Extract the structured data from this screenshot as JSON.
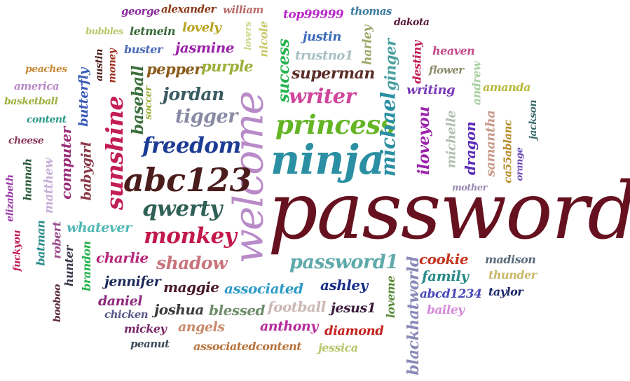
{
  "title": "Common password word cloud",
  "words": [
    {
      "text": "password",
      "color": "#66111f"
    },
    {
      "text": "welcome",
      "color": "#b98ac8"
    },
    {
      "text": "ninja",
      "color": "#2a8fa3"
    },
    {
      "text": "abc123",
      "color": "#4b1c1c"
    },
    {
      "text": "princess",
      "color": "#64b424"
    },
    {
      "text": "sunshine",
      "color": "#c21d55"
    },
    {
      "text": "freedom",
      "color": "#1c3b94"
    },
    {
      "text": "qwerty",
      "color": "#2f5f55"
    },
    {
      "text": "monkey",
      "color": "#c2184b"
    },
    {
      "text": "shadow",
      "color": "#c9737c"
    },
    {
      "text": "password1",
      "color": "#5faaaa"
    },
    {
      "text": "writer",
      "color": "#d0449a"
    },
    {
      "text": "superman",
      "color": "#5a2d26"
    },
    {
      "text": "tigger",
      "color": "#8a8aa4"
    },
    {
      "text": "jordan",
      "color": "#3b5b63"
    },
    {
      "text": "michael",
      "color": "#2a8fa3"
    },
    {
      "text": "iloveyou",
      "color": "#9b22a9"
    },
    {
      "text": "blackhatworld",
      "color": "#8a88b8"
    },
    {
      "text": "baseball",
      "color": "#3b6e3b"
    },
    {
      "text": "computer",
      "color": "#9a2e7a"
    },
    {
      "text": "babygirl",
      "color": "#8a3a4a"
    },
    {
      "text": "ginger",
      "color": "#49a0a0"
    },
    {
      "text": "success",
      "color": "#24b34d"
    },
    {
      "text": "whatever",
      "color": "#4fb7b3"
    },
    {
      "text": "charlie",
      "color": "#b6287a"
    },
    {
      "text": "maggie",
      "color": "#4a1a2a"
    },
    {
      "text": "associated",
      "color": "#2e9bc6"
    },
    {
      "text": "ashley",
      "color": "#1c2f8a"
    },
    {
      "text": "jennifer",
      "color": "#1c2a5a"
    },
    {
      "text": "daniel",
      "color": "#8e2a7e"
    },
    {
      "text": "joshua",
      "color": "#3a3a3a"
    },
    {
      "text": "blessed",
      "color": "#6e8e6a"
    },
    {
      "text": "football",
      "color": "#cbb8b3"
    },
    {
      "text": "jesus1",
      "color": "#3a1a3a"
    },
    {
      "text": "anthony",
      "color": "#b52a9b"
    },
    {
      "text": "angels",
      "color": "#c98a6a"
    },
    {
      "text": "mickey",
      "color": "#7a2a6a"
    },
    {
      "text": "diamond",
      "color": "#c4231e"
    },
    {
      "text": "jessica",
      "color": "#b8c46a"
    },
    {
      "text": "associatedcontent",
      "color": "#b8733a"
    },
    {
      "text": "peanut",
      "color": "#3a4a5a"
    },
    {
      "text": "chicken",
      "color": "#5a5a8a"
    },
    {
      "text": "booboo",
      "color": "#5a2a3a"
    },
    {
      "text": "cookie",
      "color": "#c4331e"
    },
    {
      "text": "family",
      "color": "#2a8a8a"
    },
    {
      "text": "abcd1234",
      "color": "#4a4ab8"
    },
    {
      "text": "bailey",
      "color": "#d48ad8"
    },
    {
      "text": "madison",
      "color": "#5a6a7a"
    },
    {
      "text": "thunder",
      "color": "#c8b86a"
    },
    {
      "text": "taylor",
      "color": "#1c2a6a"
    },
    {
      "text": "loveme",
      "color": "#5a8a3a"
    },
    {
      "text": "purple",
      "color": "#9ab03a"
    },
    {
      "text": "pepper",
      "color": "#8a5a1a"
    },
    {
      "text": "jasmine",
      "color": "#9b22a9"
    },
    {
      "text": "lovely",
      "color": "#b8a21e"
    },
    {
      "text": "letmein",
      "color": "#3a6a3a"
    },
    {
      "text": "buster",
      "color": "#4a6ab8"
    },
    {
      "text": "bubbles",
      "color": "#b8c86a"
    },
    {
      "text": "george",
      "color": "#8a2a9a"
    },
    {
      "text": "alexander",
      "color": "#8a3a1a"
    },
    {
      "text": "william",
      "color": "#b86a6a"
    },
    {
      "text": "top99999",
      "color": "#b828c8"
    },
    {
      "text": "thomas",
      "color": "#3a7aa0"
    },
    {
      "text": "dakota",
      "color": "#5a1a3a"
    },
    {
      "text": "justin",
      "color": "#3a6ab8"
    },
    {
      "text": "trustno1",
      "color": "#a8c0c0"
    },
    {
      "text": "harley",
      "color": "#9aa86a"
    },
    {
      "text": "lovers",
      "color": "#cad98a"
    },
    {
      "text": "nicole",
      "color": "#c8c86a"
    },
    {
      "text": "heaven",
      "color": "#c44a8a"
    },
    {
      "text": "destiny",
      "color": "#c21d55"
    },
    {
      "text": "flower",
      "color": "#8a8a6a"
    },
    {
      "text": "writing",
      "color": "#7a3ab8"
    },
    {
      "text": "andrew",
      "color": "#a8d0a0"
    },
    {
      "text": "amanda",
      "color": "#b8b83a"
    },
    {
      "text": "jackson",
      "color": "#3a6a6a"
    },
    {
      "text": "michelle",
      "color": "#b0c0b0"
    },
    {
      "text": "dragon",
      "color": "#5a2ab8"
    },
    {
      "text": "samantha",
      "color": "#c89a8a"
    },
    {
      "text": "ca55ablanc",
      "color": "#b88a2a"
    },
    {
      "text": "orange",
      "color": "#6a4ab8"
    },
    {
      "text": "mother",
      "color": "#9a8ab0"
    },
    {
      "text": "peaches",
      "color": "#c88a3a"
    },
    {
      "text": "america",
      "color": "#b888c8"
    },
    {
      "text": "basketball",
      "color": "#9ab03a"
    },
    {
      "text": "content",
      "color": "#2a9a8a"
    },
    {
      "text": "cheese",
      "color": "#8a3a5a"
    },
    {
      "text": "butterfly",
      "color": "#3a5ab8"
    },
    {
      "text": "austin",
      "color": "#4a1a1a"
    },
    {
      "text": "money",
      "color": "#a0301e"
    },
    {
      "text": "soccer",
      "color": "#9ab03a"
    },
    {
      "text": "hannah",
      "color": "#2a5a3a"
    },
    {
      "text": "matthew",
      "color": "#c8b0d8"
    },
    {
      "text": "elizabeth",
      "color": "#9a3aa8"
    },
    {
      "text": "fuckyou",
      "color": "#c21d55"
    },
    {
      "text": "batman",
      "color": "#2a8a8a"
    },
    {
      "text": "robert",
      "color": "#9a4a8a"
    },
    {
      "text": "hunter",
      "color": "#3a3a4a"
    },
    {
      "text": "brandon",
      "color": "#24b34d"
    }
  ]
}
